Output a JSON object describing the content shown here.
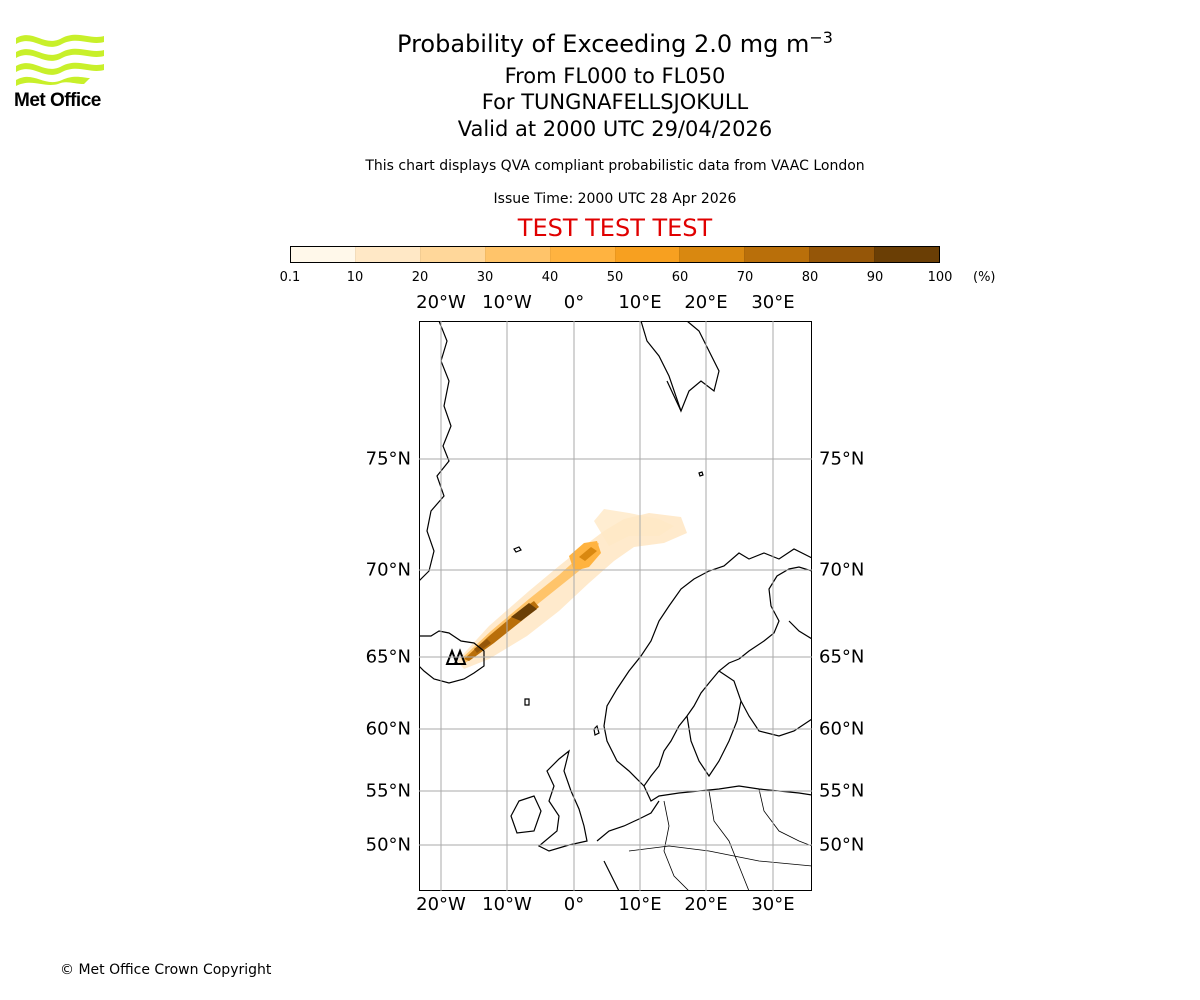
{
  "header": {
    "title_main": "Probability of Exceeding 2.0 mg m",
    "title_exponent": "−3",
    "level_range": "From FL000 to FL050",
    "volcano": "For TUNGNAFELLSJOKULL",
    "valid_time": "Valid at 2000 UTC 29/04/2026",
    "description": "This chart displays QVA compliant probabilistic data from VAAC London",
    "issue_time": "Issue Time: 2000 UTC 28 Apr 2026",
    "test_banner": "TEST TEST TEST"
  },
  "logo": {
    "text": "Met Office",
    "color": "#c8f02a"
  },
  "colorbar": {
    "unit": "(%)",
    "ticks": [
      "0.1",
      "10",
      "20",
      "30",
      "40",
      "50",
      "60",
      "70",
      "80",
      "90",
      "100"
    ],
    "colors": [
      "#fff8ea",
      "#ffe8c6",
      "#ffd79a",
      "#ffc46a",
      "#ffb340",
      "#f7a020",
      "#d98810",
      "#b96f0a",
      "#955608",
      "#6a3e05"
    ]
  },
  "map": {
    "lon_ticks_top": [
      "20°W",
      "10°W",
      "0°",
      "10°E",
      "20°E",
      "30°E"
    ],
    "lon_ticks_bottom": [
      "20°W",
      "10°W",
      "0°",
      "10°E",
      "20°E",
      "30°E"
    ],
    "lat_ticks": [
      "75°N",
      "70°N",
      "65°N",
      "60°N",
      "55°N",
      "50°N"
    ],
    "plume_color_scale": "orange-brown",
    "grid": true
  },
  "footer": {
    "copyright": "© Met Office Crown Copyright"
  }
}
